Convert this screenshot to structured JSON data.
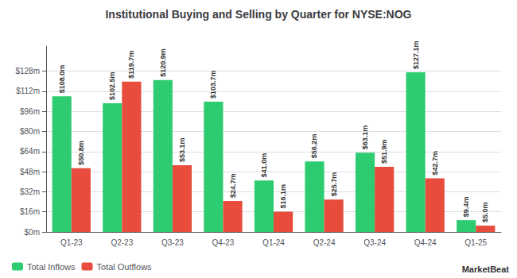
{
  "chart_data": {
    "type": "bar",
    "title": "Institutional Buying and Selling by Quarter for NYSE:NOG",
    "categories": [
      "Q1-23",
      "Q2-23",
      "Q3-23",
      "Q4-23",
      "Q1-24",
      "Q2-24",
      "Q3-24",
      "Q4-24",
      "Q1-25"
    ],
    "series": [
      {
        "name": "Total Inflows",
        "color": "#2ecc71",
        "values": [
          108.0,
          102.5,
          120.9,
          103.7,
          41.0,
          56.2,
          63.1,
          127.1,
          9.4
        ],
        "value_labels": [
          "$108.0m",
          "$102.5m",
          "$120.9m",
          "$103.7m",
          "$41.0m",
          "$56.2m",
          "$63.1m",
          "$127.1m",
          "$9.4m"
        ]
      },
      {
        "name": "Total Outflows",
        "color": "#e74c3c",
        "values": [
          50.8,
          119.7,
          53.1,
          24.7,
          16.1,
          25.7,
          51.9,
          42.7,
          5.0
        ],
        "value_labels": [
          "$50.8m",
          "$119.7m",
          "$53.1m",
          "$24.7m",
          "$16.1m",
          "$25.7m",
          "$51.9m",
          "$42.7m",
          "$5.0m"
        ]
      }
    ],
    "ylim": [
      0,
      148
    ],
    "yticks": [
      {
        "value": 0,
        "label": "$0m"
      },
      {
        "value": 16,
        "label": "$16m"
      },
      {
        "value": 32,
        "label": "$32m"
      },
      {
        "value": 48,
        "label": "$48m"
      },
      {
        "value": 64,
        "label": "$64m"
      },
      {
        "value": 80,
        "label": "$80m"
      },
      {
        "value": 96,
        "label": "$96m"
      },
      {
        "value": 112,
        "label": "$112m"
      },
      {
        "value": 128,
        "label": "$128m"
      }
    ],
    "grid": true,
    "legend": "lower left",
    "data_labels": true,
    "annotation": "MarketBeat"
  }
}
